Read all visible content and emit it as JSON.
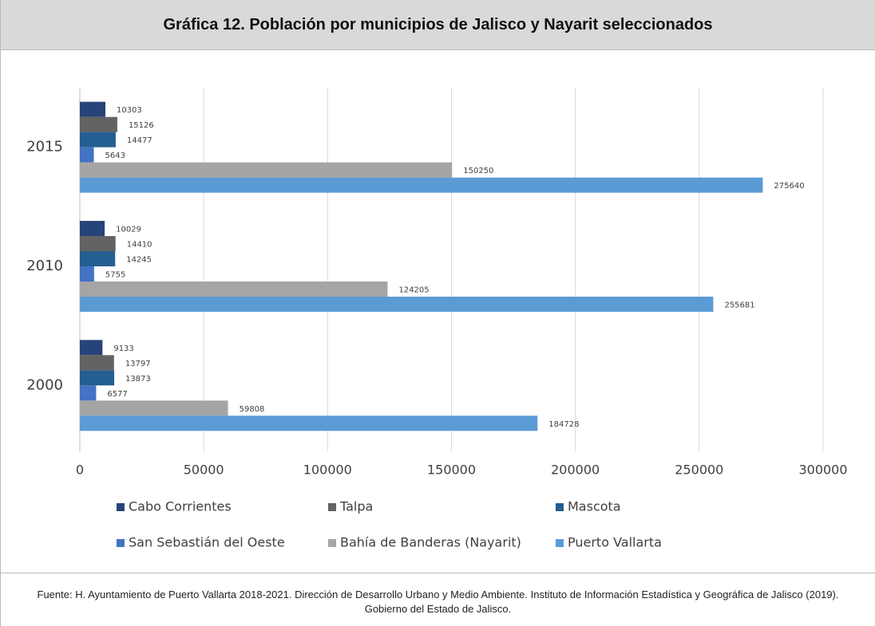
{
  "chart_data": {
    "type": "hbar",
    "title": "Gráfica 12. Población por municipios de Jalisco y Nayarit seleccionados",
    "categories": [
      "2000",
      "2010",
      "2015"
    ],
    "series": [
      {
        "name": "Cabo Corrientes",
        "color": "#264478",
        "values": [
          9133,
          10029,
          10303
        ]
      },
      {
        "name": "Talpa",
        "color": "#636363",
        "values": [
          13797,
          14410,
          15126
        ]
      },
      {
        "name": "Mascota",
        "color": "#255e91",
        "values": [
          13873,
          14245,
          14477
        ]
      },
      {
        "name": "San Sebastián del Oeste",
        "color": "#4472c4",
        "values": [
          6577,
          5755,
          5643
        ]
      },
      {
        "name": "Bahía de Banderas (Nayarit)",
        "color": "#a5a5a5",
        "values": [
          59808,
          124205,
          150250
        ]
      },
      {
        "name": "Puerto Vallarta",
        "color": "#5b9bd5",
        "values": [
          184728,
          255681,
          275640
        ]
      }
    ],
    "xlim": [
      0,
      300000
    ],
    "xticks": [
      0,
      50000,
      100000,
      150000,
      200000,
      250000,
      300000
    ],
    "grid": true,
    "legend": "bottom",
    "source": "Fuente: H. Ayuntamiento de Puerto Vallarta 2018-2021. Dirección de Desarrollo Urbano y Medio Ambiente. Instituto de Información Estadística y Geográfica de Jalisco (2019). Gobierno del Estado de Jalisco."
  }
}
